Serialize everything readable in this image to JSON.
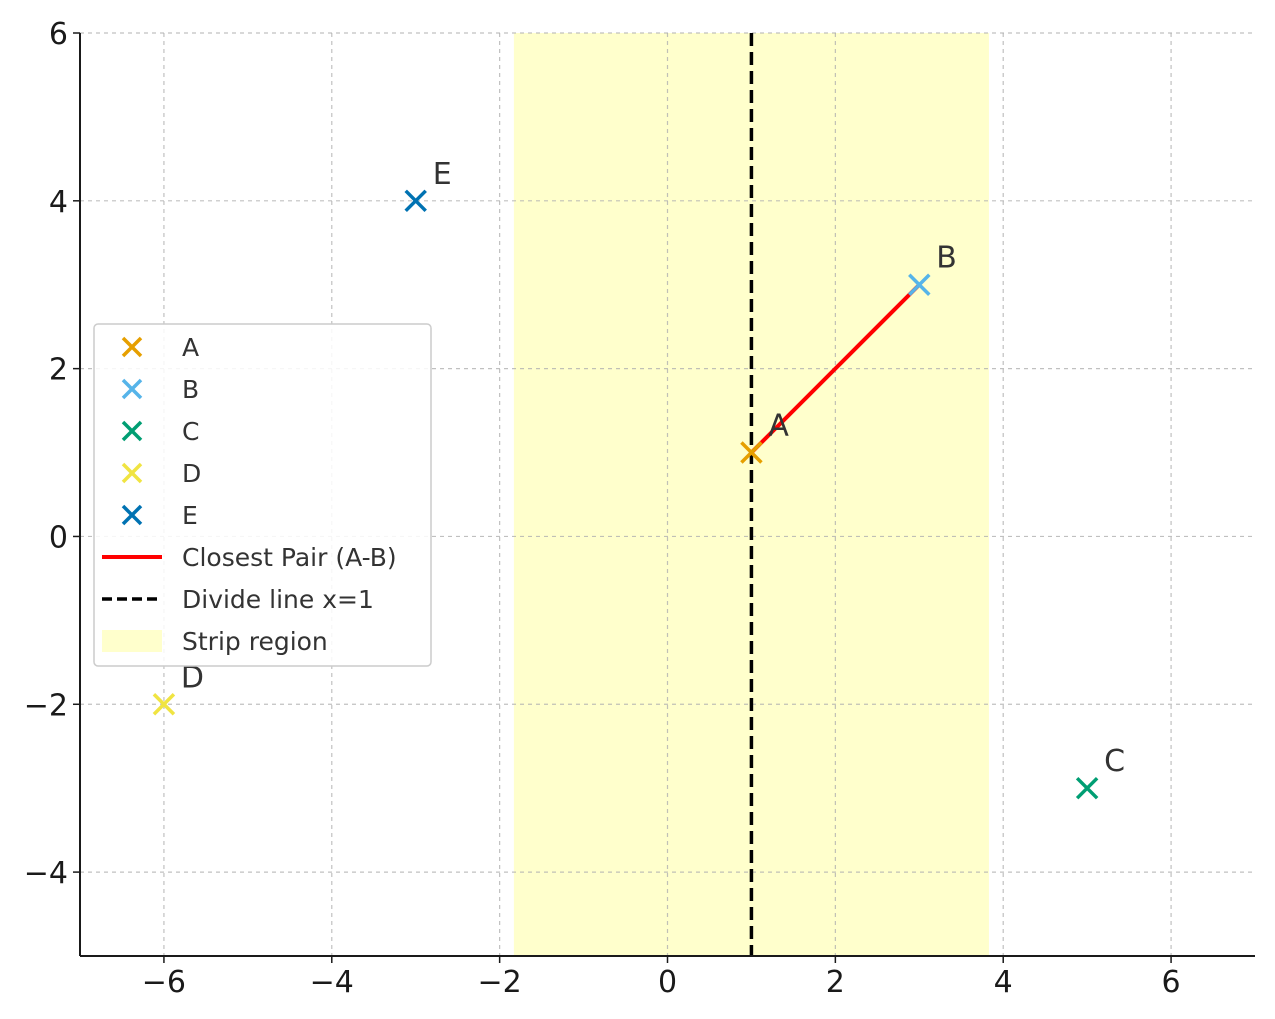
{
  "chart_data": {
    "type": "scatter",
    "xlim": [
      -7,
      7
    ],
    "ylim": [
      -5,
      6
    ],
    "x_ticks": [
      -6,
      -4,
      -2,
      0,
      2,
      4,
      6
    ],
    "y_ticks": [
      -4,
      -2,
      0,
      2,
      4,
      6
    ],
    "grid": true,
    "legend_position": "center-left",
    "points": [
      {
        "name": "A",
        "x": 1,
        "y": 1,
        "color": "#E69F00"
      },
      {
        "name": "B",
        "x": 3,
        "y": 3,
        "color": "#56B4E9"
      },
      {
        "name": "C",
        "x": 5,
        "y": -3,
        "color": "#009E73"
      },
      {
        "name": "D",
        "x": -6,
        "y": -2,
        "color": "#F0E442"
      },
      {
        "name": "E",
        "x": -3,
        "y": 4,
        "color": "#0072B2"
      }
    ],
    "closest_pair": {
      "label": "Closest Pair (A-B)",
      "from": [
        1,
        1
      ],
      "to": [
        3,
        3
      ],
      "color": "#FF0000"
    },
    "divide_line": {
      "label": "Divide line x=1",
      "x": 1,
      "color": "#000000"
    },
    "strip": {
      "label": "Strip region",
      "x_range": [
        -1.83,
        3.83
      ],
      "color": "#FFFF99"
    }
  }
}
